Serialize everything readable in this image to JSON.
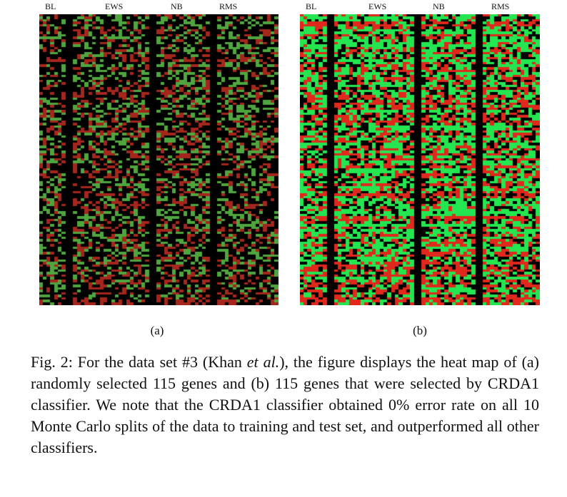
{
  "figure": {
    "panels": [
      {
        "id": "a",
        "sub_label": "(a)",
        "group_labels": [
          "BL",
          "EWS",
          "NB",
          "RMS"
        ],
        "colors": {
          "down": "#a5261c",
          "up": "#4fa63e",
          "zero": "#000000"
        },
        "highlight": "dim"
      },
      {
        "id": "b",
        "sub_label": "(b)",
        "group_labels": [
          "BL",
          "EWS",
          "NB",
          "RMS"
        ],
        "colors": {
          "down": "#e0281c",
          "up": "#23e650",
          "zero": "#000000"
        },
        "highlight": "bright"
      }
    ],
    "caption": {
      "prefix": "Fig. 2: For the data set #3 (Khan ",
      "emph": "et al.",
      "suffix": "), the figure displays the heat map of (a) randomly selected 115 genes and (b) 115 genes that were selected by CRDA1 classifier. We note that the CRDA1 classifier obtained 0% error rate on all 10 Monte Carlo splits of the data to training and test set, and outperformed all other classifiers."
    }
  },
  "chart_data": [
    {
      "type": "heatmap",
      "title": "",
      "rows": 115,
      "columns": [
        "BL",
        "EWS",
        "NB",
        "RMS"
      ],
      "color_scale": {
        "low": "#a5261c",
        "mid": "#000000",
        "high": "#4fa63e"
      }
    },
    {
      "type": "heatmap",
      "title": "",
      "rows": 115,
      "columns": [
        "BL",
        "EWS",
        "NB",
        "RMS"
      ],
      "color_scale": {
        "low": "#e0281c",
        "mid": "#000000",
        "high": "#23e650"
      }
    }
  ]
}
